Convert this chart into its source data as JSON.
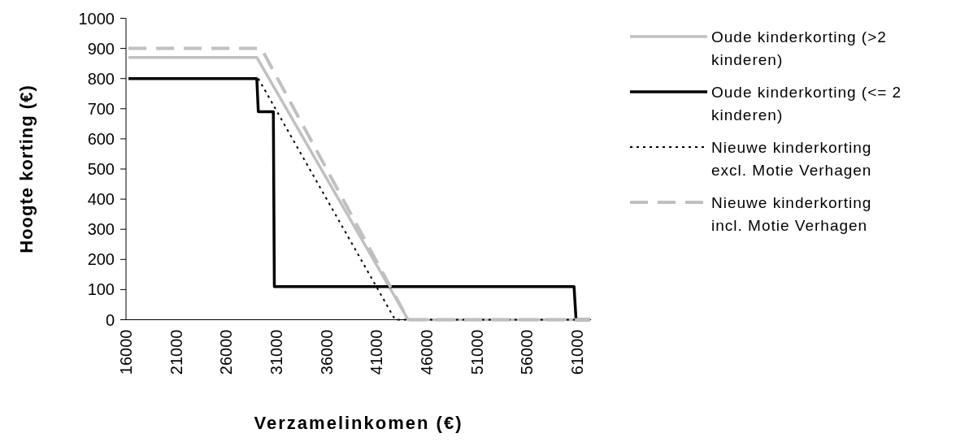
{
  "chart_data": {
    "type": "line",
    "xlabel": "Verzamelinkomen (€)",
    "ylabel": "Hoogte korting (€)",
    "xlim": [
      16000,
      62400
    ],
    "xticks": [
      16000,
      21000,
      26000,
      31000,
      36000,
      41000,
      46000,
      51000,
      56000,
      61000
    ],
    "ylim": [
      0,
      1000
    ],
    "yticks": [
      0,
      100,
      200,
      300,
      400,
      500,
      600,
      700,
      800,
      900,
      1000
    ],
    "grid": false,
    "legend": "right",
    "marker": "none",
    "series": [
      {
        "name": "Oude kinderkorting (>2 kinderen)",
        "color": "#c0c0c0",
        "line_style": "solid",
        "x": [
          16250,
          29050,
          44150,
          62300
        ],
        "values": [
          870,
          870,
          0,
          0
        ]
      },
      {
        "name": "Oude kinderkorting (<= 2 kinderen)",
        "color": "#000000",
        "line_style": "solid",
        "x": [
          16250,
          29050,
          29200,
          30700,
          30800,
          60700,
          60900,
          62300
        ],
        "values": [
          800,
          800,
          690,
          690,
          110,
          110,
          0,
          0
        ]
      },
      {
        "name": "Nieuwe kinderkorting excl. Motie Verhagen",
        "color": "#000000",
        "line_style": "dotted",
        "x": [
          29200,
          42850,
          62300
        ],
        "values": [
          800,
          0,
          0
        ]
      },
      {
        "name": "Nieuwe kinderkorting incl. Motie Verhagen",
        "color": "#c0c0c0",
        "line_style": "dashed",
        "x": [
          16250,
          29500,
          44150,
          62300
        ],
        "values": [
          900,
          900,
          0,
          0
        ]
      }
    ]
  }
}
